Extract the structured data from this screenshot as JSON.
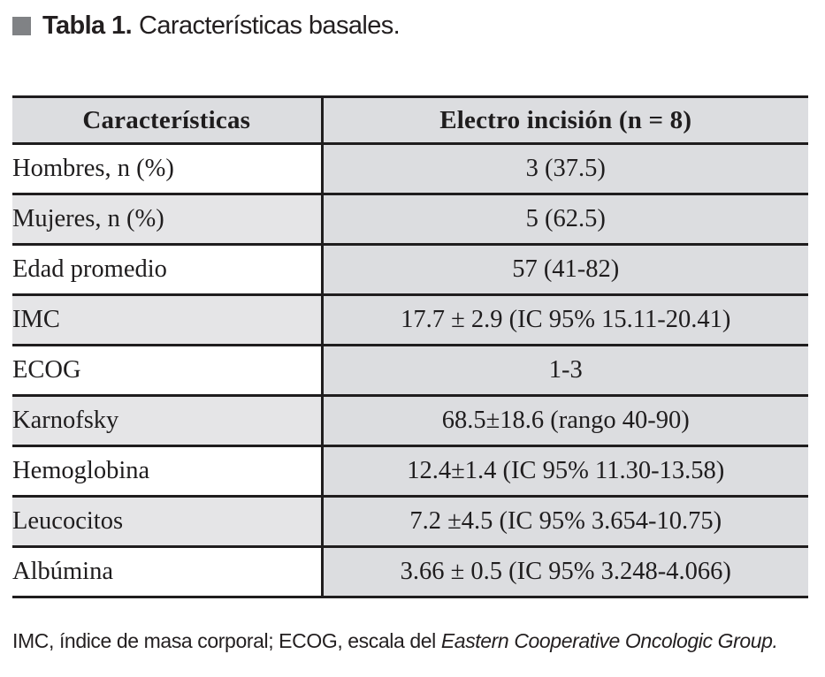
{
  "caption": {
    "bullet_color": "#808285",
    "label": "Tabla 1.",
    "text": "Características basales."
  },
  "table": {
    "headers": {
      "characteristics": "Características",
      "group": "Electro incisión (n = 8)"
    },
    "rows": [
      {
        "label": "Hombres, n (%)",
        "value": "3 (37.5)"
      },
      {
        "label": "Mujeres, n (%)",
        "value": "5 (62.5)"
      },
      {
        "label": "Edad promedio",
        "value": "57  (41-82)"
      },
      {
        "label": "IMC",
        "value": "17.7 ± 2.9 (IC 95% 15.11-20.41)"
      },
      {
        "label": "ECOG",
        "value": "1-3"
      },
      {
        "label": "Karnofsky",
        "value": "68.5±18.6 (rango 40-90)"
      },
      {
        "label": "Hemoglobina",
        "value": "12.4±1.4  (IC 95% 11.30-13.58)"
      },
      {
        "label": "Leucocitos",
        "value": "7.2 ±4.5 (IC 95% 3.654-10.75)"
      },
      {
        "label": "Albúmina",
        "value": "3.66 ± 0.5  (IC 95% 3.248-4.066)"
      }
    ]
  },
  "footnote": {
    "regular": "IMC, índice de masa corporal; ECOG, escala del ",
    "italic": "Eastern Cooperative Oncologic Group."
  },
  "colors": {
    "bullet": "#808285",
    "header_bg": "#dcdde0",
    "col2_bg": "#dcdde0",
    "row_shade": "#e5e5e7",
    "border": "#1f1d1e",
    "text": "#231f20"
  }
}
